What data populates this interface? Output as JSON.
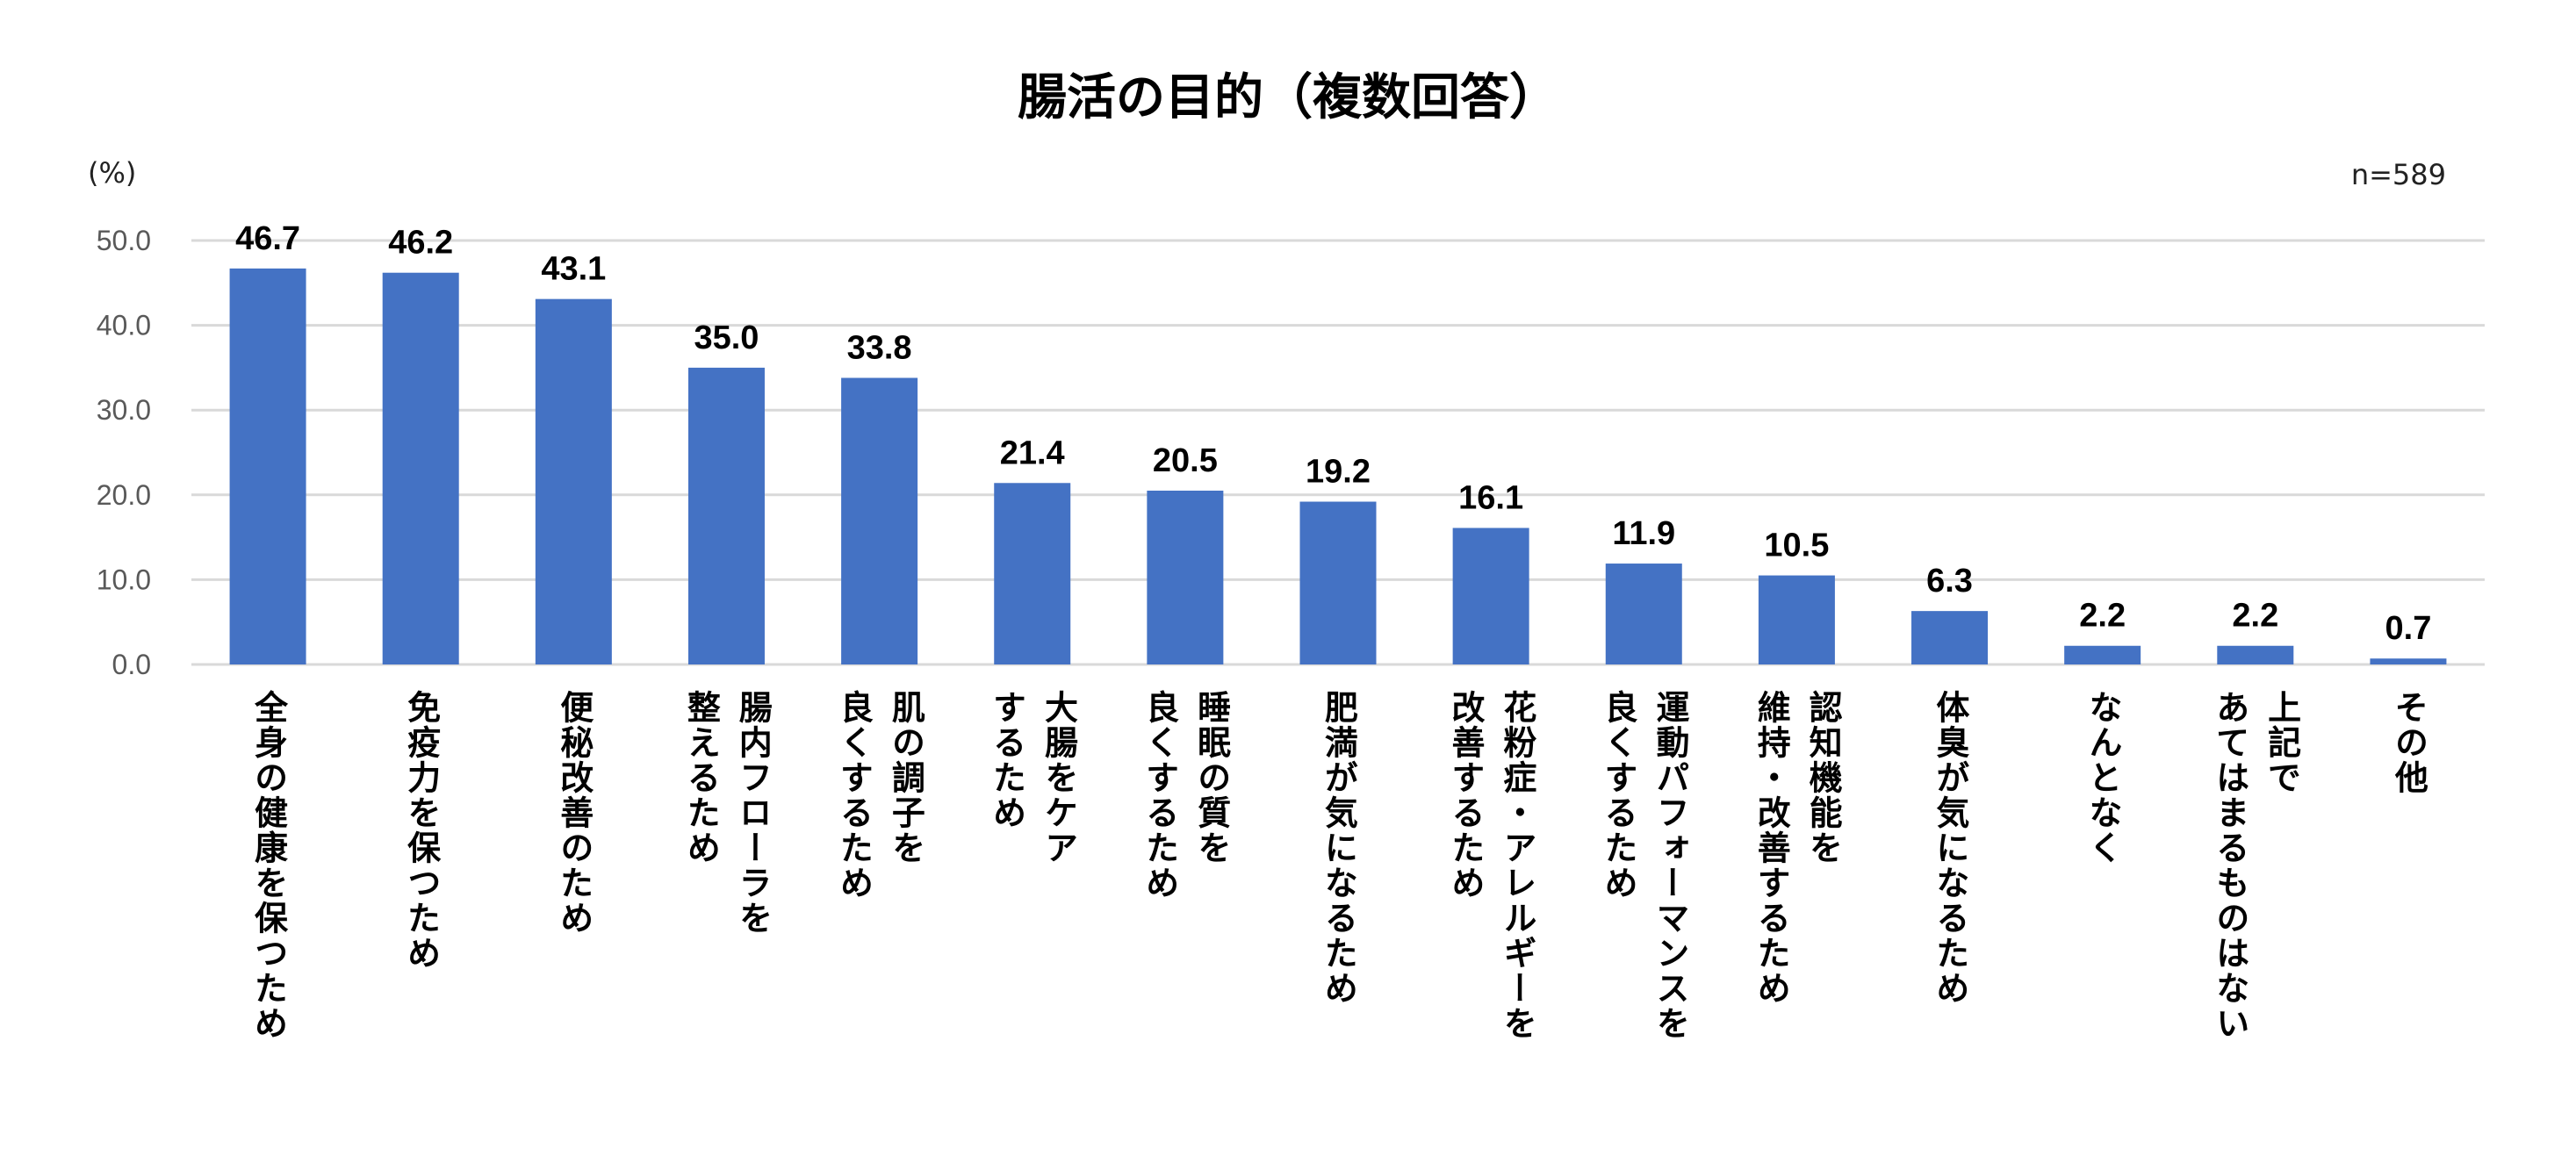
{
  "chart_data": {
    "type": "bar",
    "title": "腸活の目的（複数回答）",
    "ylabel": "(%)",
    "annotation": "n=589",
    "ylim": [
      0,
      50
    ],
    "yticks": [
      "0.0",
      "10.0",
      "20.0",
      "30.0",
      "40.0",
      "50.0"
    ],
    "grid": true,
    "bar_color": "#4472C4",
    "categories": [
      "全身の健康を保つため",
      "免疫力を保つため",
      "便秘改善のため",
      "腸内フローラを\n整えるため",
      "肌の調子を\n良くするため",
      "大腸をケア\nするため",
      "睡眠の質を\n良くするため",
      "肥満が気になるため",
      "花粉症・アレルギーを\n改善するため",
      "運動パフォーマンスを\n良くするため",
      "認知機能を\n維持・改善するため",
      "体臭が気になるため",
      "なんとなく",
      "上記で\nあてはまるものはない",
      "その他"
    ],
    "values": [
      46.7,
      46.2,
      43.1,
      35.0,
      33.8,
      21.4,
      20.5,
      19.2,
      16.1,
      11.9,
      10.5,
      6.3,
      2.2,
      2.2,
      0.7
    ],
    "data_labels": [
      "46.7",
      "46.2",
      "43.1",
      "35.0",
      "33.8",
      "21.4",
      "20.5",
      "19.2",
      "16.1",
      "11.9",
      "10.5",
      "6.3",
      "2.2",
      "2.2",
      "0.7"
    ]
  }
}
